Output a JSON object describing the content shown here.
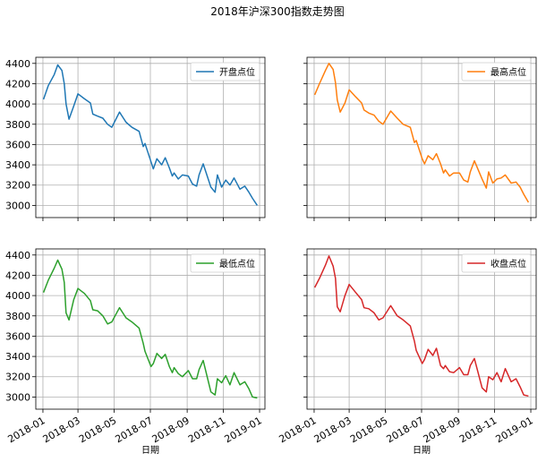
{
  "chart_data": {
    "type": "line",
    "title": "2018年沪深300指数走势图",
    "xlabel": "日期",
    "ylabel": "",
    "xlim": [
      "2017-12-20",
      "2019-01-10"
    ],
    "ylim": [
      2880,
      4460
    ],
    "x_ticks": [
      "2018-01",
      "2018-03",
      "2018-05",
      "2018-07",
      "2018-09",
      "2018-11",
      "2019-01"
    ],
    "y_ticks": [
      3000,
      3200,
      3400,
      3600,
      3800,
      4000,
      4200,
      4400
    ],
    "grid": true,
    "layout": "2x2 subplots, shared x and y",
    "legend_position": "upper right",
    "x": [
      "2018-01-02",
      "2018-01-10",
      "2018-01-20",
      "2018-01-26",
      "2018-02-02",
      "2018-02-06",
      "2018-02-09",
      "2018-02-14",
      "2018-02-22",
      "2018-03-01",
      "2018-03-12",
      "2018-03-22",
      "2018-03-26",
      "2018-04-03",
      "2018-04-12",
      "2018-04-20",
      "2018-04-27",
      "2018-05-10",
      "2018-05-21",
      "2018-05-31",
      "2018-06-12",
      "2018-06-19",
      "2018-06-22",
      "2018-07-02",
      "2018-07-06",
      "2018-07-12",
      "2018-07-20",
      "2018-07-26",
      "2018-08-02",
      "2018-08-07",
      "2018-08-10",
      "2018-08-17",
      "2018-08-24",
      "2018-09-03",
      "2018-09-10",
      "2018-09-17",
      "2018-09-21",
      "2018-09-28",
      "2018-10-11",
      "2018-10-18",
      "2018-10-22",
      "2018-10-29",
      "2018-11-05",
      "2018-11-12",
      "2018-11-19",
      "2018-11-29",
      "2018-12-07",
      "2018-12-14",
      "2018-12-20",
      "2018-12-28"
    ],
    "series": [
      {
        "name": "开盘点位",
        "color": "#1f77b4",
        "values": [
          4045,
          4180,
          4290,
          4385,
          4330,
          4200,
          4000,
          3850,
          3980,
          4100,
          4050,
          4010,
          3900,
          3880,
          3860,
          3800,
          3770,
          3920,
          3820,
          3770,
          3730,
          3580,
          3610,
          3430,
          3360,
          3460,
          3400,
          3470,
          3370,
          3290,
          3320,
          3260,
          3300,
          3290,
          3210,
          3190,
          3300,
          3410,
          3180,
          3130,
          3300,
          3180,
          3250,
          3200,
          3270,
          3160,
          3190,
          3130,
          3070,
          3000
        ]
      },
      {
        "name": "最高点位",
        "color": "#ff7f0e",
        "values": [
          4090,
          4200,
          4330,
          4400,
          4340,
          4210,
          4040,
          3920,
          4010,
          4140,
          4070,
          4010,
          3940,
          3910,
          3890,
          3830,
          3800,
          3930,
          3860,
          3800,
          3770,
          3620,
          3640,
          3460,
          3410,
          3490,
          3450,
          3510,
          3410,
          3320,
          3350,
          3290,
          3320,
          3320,
          3250,
          3230,
          3330,
          3440,
          3260,
          3170,
          3330,
          3220,
          3260,
          3270,
          3300,
          3220,
          3230,
          3180,
          3110,
          3030
        ]
      },
      {
        "name": "最低点位",
        "color": "#2ca02c",
        "values": [
          4030,
          4150,
          4270,
          4350,
          4260,
          4130,
          3830,
          3760,
          3960,
          4070,
          4020,
          3950,
          3860,
          3850,
          3800,
          3720,
          3740,
          3880,
          3780,
          3740,
          3680,
          3530,
          3450,
          3300,
          3330,
          3430,
          3380,
          3420,
          3300,
          3240,
          3290,
          3230,
          3200,
          3260,
          3180,
          3180,
          3270,
          3360,
          3050,
          3020,
          3180,
          3140,
          3210,
          3120,
          3240,
          3120,
          3150,
          3080,
          3000,
          2990
        ]
      },
      {
        "name": "收盘点位",
        "color": "#d62728",
        "values": [
          4080,
          4170,
          4300,
          4390,
          4290,
          4170,
          3890,
          3840,
          4000,
          4110,
          4030,
          3960,
          3880,
          3870,
          3830,
          3760,
          3780,
          3900,
          3800,
          3760,
          3700,
          3550,
          3460,
          3330,
          3370,
          3470,
          3410,
          3480,
          3310,
          3280,
          3310,
          3250,
          3240,
          3290,
          3220,
          3220,
          3310,
          3380,
          3090,
          3050,
          3200,
          3170,
          3240,
          3150,
          3280,
          3150,
          3180,
          3100,
          3020,
          3010
        ]
      }
    ]
  }
}
